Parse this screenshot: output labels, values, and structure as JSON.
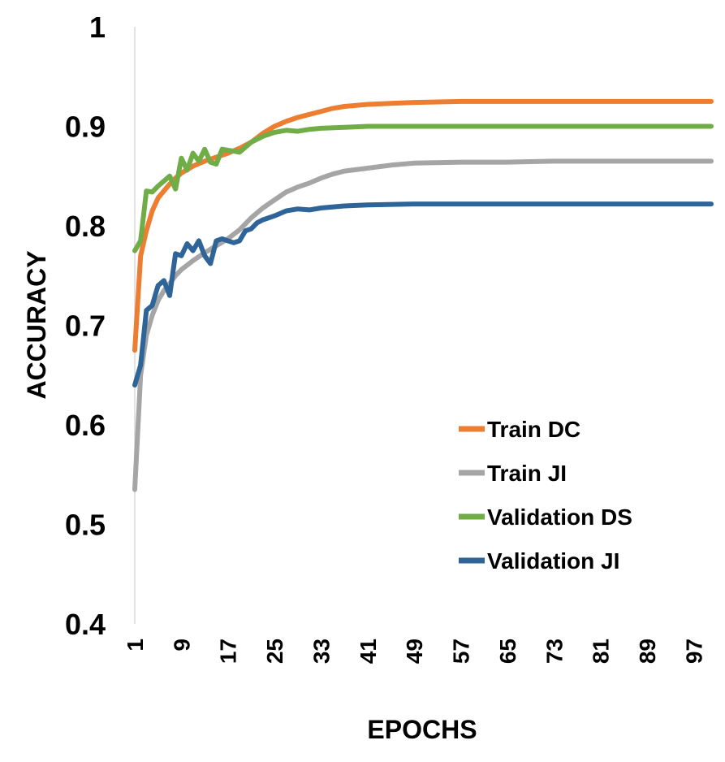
{
  "chart_data": {
    "type": "line",
    "title": "",
    "xlabel": "EPOCHS",
    "ylabel": "ACCURACY",
    "xlim": [
      1,
      100
    ],
    "ylim": [
      0.4,
      1.0
    ],
    "y_ticks": [
      "0.4",
      "0.5",
      "0.6",
      "0.7",
      "0.8",
      "0.9",
      "1"
    ],
    "x_ticks": [
      "1",
      "9",
      "17",
      "25",
      "33",
      "41",
      "49",
      "57",
      "65",
      "73",
      "81",
      "89",
      "97"
    ],
    "grid": false,
    "legend_position": "bottom-right",
    "series": [
      {
        "name": "Train DC",
        "color": "#ED7D31",
        "points": [
          [
            1,
            0.675
          ],
          [
            2,
            0.77
          ],
          [
            3,
            0.795
          ],
          [
            4,
            0.815
          ],
          [
            5,
            0.828
          ],
          [
            6,
            0.835
          ],
          [
            7,
            0.842
          ],
          [
            8,
            0.848
          ],
          [
            9,
            0.853
          ],
          [
            11,
            0.86
          ],
          [
            13,
            0.865
          ],
          [
            15,
            0.869
          ],
          [
            17,
            0.873
          ],
          [
            19,
            0.878
          ],
          [
            21,
            0.884
          ],
          [
            23,
            0.893
          ],
          [
            25,
            0.9
          ],
          [
            27,
            0.905
          ],
          [
            29,
            0.909
          ],
          [
            31,
            0.912
          ],
          [
            33,
            0.915
          ],
          [
            35,
            0.918
          ],
          [
            37,
            0.92
          ],
          [
            41,
            0.922
          ],
          [
            45,
            0.923
          ],
          [
            49,
            0.924
          ],
          [
            57,
            0.925
          ],
          [
            65,
            0.925
          ],
          [
            73,
            0.925
          ],
          [
            81,
            0.925
          ],
          [
            89,
            0.925
          ],
          [
            100,
            0.925
          ]
        ]
      },
      {
        "name": "Train JI",
        "color": "#A5A5A5",
        "points": [
          [
            1,
            0.535
          ],
          [
            2,
            0.65
          ],
          [
            3,
            0.69
          ],
          [
            4,
            0.71
          ],
          [
            5,
            0.725
          ],
          [
            6,
            0.735
          ],
          [
            7,
            0.742
          ],
          [
            8,
            0.75
          ],
          [
            9,
            0.756
          ],
          [
            11,
            0.765
          ],
          [
            13,
            0.773
          ],
          [
            15,
            0.78
          ],
          [
            17,
            0.787
          ],
          [
            19,
            0.796
          ],
          [
            21,
            0.808
          ],
          [
            23,
            0.818
          ],
          [
            25,
            0.826
          ],
          [
            27,
            0.834
          ],
          [
            29,
            0.839
          ],
          [
            31,
            0.843
          ],
          [
            33,
            0.848
          ],
          [
            35,
            0.852
          ],
          [
            37,
            0.855
          ],
          [
            41,
            0.858
          ],
          [
            45,
            0.861
          ],
          [
            49,
            0.863
          ],
          [
            57,
            0.864
          ],
          [
            65,
            0.864
          ],
          [
            73,
            0.865
          ],
          [
            81,
            0.865
          ],
          [
            89,
            0.865
          ],
          [
            100,
            0.865
          ]
        ]
      },
      {
        "name": "Validation DS",
        "color": "#70AD47",
        "points": [
          [
            1,
            0.775
          ],
          [
            2,
            0.785
          ],
          [
            3,
            0.835
          ],
          [
            4,
            0.834
          ],
          [
            5,
            0.84
          ],
          [
            6,
            0.845
          ],
          [
            7,
            0.85
          ],
          [
            8,
            0.837
          ],
          [
            9,
            0.868
          ],
          [
            10,
            0.856
          ],
          [
            11,
            0.873
          ],
          [
            12,
            0.865
          ],
          [
            13,
            0.877
          ],
          [
            14,
            0.864
          ],
          [
            15,
            0.862
          ],
          [
            16,
            0.877
          ],
          [
            17,
            0.876
          ],
          [
            18,
            0.875
          ],
          [
            19,
            0.874
          ],
          [
            21,
            0.884
          ],
          [
            23,
            0.89
          ],
          [
            25,
            0.894
          ],
          [
            27,
            0.896
          ],
          [
            29,
            0.895
          ],
          [
            31,
            0.897
          ],
          [
            33,
            0.898
          ],
          [
            37,
            0.899
          ],
          [
            41,
            0.9
          ],
          [
            49,
            0.9
          ],
          [
            57,
            0.9
          ],
          [
            65,
            0.9
          ],
          [
            73,
            0.9
          ],
          [
            81,
            0.9
          ],
          [
            89,
            0.9
          ],
          [
            100,
            0.9
          ]
        ]
      },
      {
        "name": "Validation JI",
        "color": "#2E6497",
        "points": [
          [
            1,
            0.64
          ],
          [
            2,
            0.66
          ],
          [
            3,
            0.715
          ],
          [
            4,
            0.72
          ],
          [
            5,
            0.74
          ],
          [
            6,
            0.745
          ],
          [
            7,
            0.73
          ],
          [
            8,
            0.772
          ],
          [
            9,
            0.77
          ],
          [
            10,
            0.782
          ],
          [
            11,
            0.775
          ],
          [
            12,
            0.785
          ],
          [
            13,
            0.77
          ],
          [
            14,
            0.762
          ],
          [
            15,
            0.785
          ],
          [
            16,
            0.787
          ],
          [
            17,
            0.785
          ],
          [
            18,
            0.783
          ],
          [
            19,
            0.785
          ],
          [
            20,
            0.795
          ],
          [
            21,
            0.797
          ],
          [
            22,
            0.803
          ],
          [
            23,
            0.806
          ],
          [
            25,
            0.81
          ],
          [
            27,
            0.815
          ],
          [
            29,
            0.817
          ],
          [
            31,
            0.816
          ],
          [
            33,
            0.818
          ],
          [
            37,
            0.82
          ],
          [
            41,
            0.821
          ],
          [
            49,
            0.822
          ],
          [
            57,
            0.822
          ],
          [
            65,
            0.822
          ],
          [
            73,
            0.822
          ],
          [
            81,
            0.822
          ],
          [
            89,
            0.822
          ],
          [
            100,
            0.822
          ]
        ]
      }
    ]
  }
}
